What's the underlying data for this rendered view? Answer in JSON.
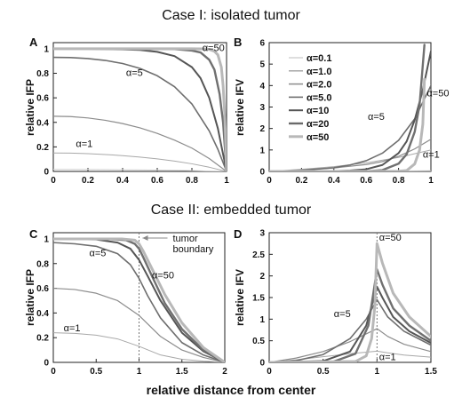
{
  "figure": {
    "case1_title": "Case I: isolated tumor",
    "case2_title": "Case II: embedded tumor",
    "shared_xlabel": "relative distance from center"
  },
  "legend": {
    "entries": [
      "α=0.1",
      "α=1.0",
      "α=2.0",
      "α=5.0",
      "α=10",
      "α=20",
      "α=50"
    ],
    "colors": [
      "#d2d2d2",
      "#a8a8a8",
      "#8c8c8c",
      "#6e6e6e",
      "#555555",
      "#6a6a6a",
      "#b8b8b8"
    ]
  },
  "chart_data": [
    {
      "panel": "A",
      "type": "line",
      "ylabel": "relative IFP",
      "xlim": [
        0,
        1
      ],
      "ylim": [
        0,
        1.05
      ],
      "xticks": [
        "0",
        "0.2",
        "0.4",
        "0.6",
        "0.8",
        "1"
      ],
      "yticks": [
        "0",
        "0.2",
        "0.4",
        "0.6",
        "0.8",
        "1"
      ],
      "annotations": [
        "α=50",
        "α=5",
        "α=1"
      ],
      "series": [
        {
          "name": "α=0.1",
          "x": [
            0,
            0.1,
            0.2,
            0.3,
            0.4,
            0.5,
            0.6,
            0.7,
            0.8,
            0.9,
            1
          ],
          "y": [
            0.017,
            0.017,
            0.016,
            0.015,
            0.014,
            0.013,
            0.011,
            0.009,
            0.006,
            0.003,
            0
          ]
        },
        {
          "name": "α=1.0",
          "x": [
            0,
            0.1,
            0.2,
            0.3,
            0.4,
            0.5,
            0.6,
            0.7,
            0.8,
            0.9,
            1
          ],
          "y": [
            0.15,
            0.149,
            0.145,
            0.138,
            0.129,
            0.117,
            0.102,
            0.084,
            0.062,
            0.034,
            0
          ]
        },
        {
          "name": "α=2.0",
          "x": [
            0,
            0.1,
            0.2,
            0.3,
            0.4,
            0.5,
            0.6,
            0.7,
            0.8,
            0.9,
            1
          ],
          "y": [
            0.45,
            0.447,
            0.436,
            0.417,
            0.39,
            0.355,
            0.31,
            0.255,
            0.19,
            0.105,
            0
          ]
        },
        {
          "name": "α=5.0",
          "x": [
            0,
            0.1,
            0.2,
            0.3,
            0.4,
            0.5,
            0.6,
            0.7,
            0.8,
            0.9,
            0.95,
            1
          ],
          "y": [
            0.93,
            0.928,
            0.92,
            0.905,
            0.88,
            0.84,
            0.78,
            0.69,
            0.55,
            0.33,
            0.18,
            0
          ]
        },
        {
          "name": "α=10",
          "x": [
            0,
            0.2,
            0.4,
            0.5,
            0.6,
            0.7,
            0.8,
            0.85,
            0.9,
            0.95,
            1
          ],
          "y": [
            1.0,
            0.999,
            0.995,
            0.99,
            0.975,
            0.94,
            0.85,
            0.76,
            0.6,
            0.35,
            0
          ]
        },
        {
          "name": "α=20",
          "x": [
            0,
            0.4,
            0.6,
            0.7,
            0.8,
            0.85,
            0.9,
            0.93,
            0.96,
            0.98,
            1
          ],
          "y": [
            1.0,
            1.0,
            0.999,
            0.997,
            0.985,
            0.97,
            0.91,
            0.83,
            0.63,
            0.4,
            0
          ]
        },
        {
          "name": "α=50",
          "x": [
            0,
            0.6,
            0.8,
            0.86,
            0.9,
            0.93,
            0.95,
            0.97,
            0.98,
            0.99,
            1
          ],
          "y": [
            1.0,
            1.0,
            1.0,
            0.999,
            0.995,
            0.98,
            0.95,
            0.85,
            0.7,
            0.45,
            0
          ]
        }
      ]
    },
    {
      "panel": "B",
      "type": "line",
      "ylabel": "relative IFV",
      "xlim": [
        0,
        1
      ],
      "ylim": [
        0,
        6
      ],
      "xticks": [
        "0",
        "0.2",
        "0.4",
        "0.6",
        "0.8",
        "1"
      ],
      "yticks": [
        "0",
        "1",
        "2",
        "3",
        "4",
        "5",
        "6"
      ],
      "annotations": [
        "α=50",
        "α=5",
        "α=1"
      ],
      "series": [
        {
          "name": "α=0.1",
          "x": [
            0,
            0.2,
            0.4,
            0.6,
            0.8,
            1
          ],
          "y": [
            0,
            0.005,
            0.011,
            0.017,
            0.023,
            0.03
          ]
        },
        {
          "name": "α=1.0",
          "x": [
            0,
            0.2,
            0.4,
            0.6,
            0.8,
            1
          ],
          "y": [
            0,
            0.1,
            0.22,
            0.4,
            0.65,
            1.0
          ]
        },
        {
          "name": "α=2.0",
          "x": [
            0,
            0.2,
            0.4,
            0.6,
            0.7,
            0.8,
            0.9,
            1
          ],
          "y": [
            0,
            0.07,
            0.16,
            0.32,
            0.46,
            0.7,
            1.05,
            1.5
          ]
        },
        {
          "name": "α=5.0",
          "x": [
            0,
            0.2,
            0.4,
            0.5,
            0.6,
            0.7,
            0.8,
            0.9,
            1
          ],
          "y": [
            0,
            0.05,
            0.17,
            0.3,
            0.5,
            0.85,
            1.45,
            2.45,
            4.0
          ]
        },
        {
          "name": "α=10",
          "x": [
            0,
            0.4,
            0.5,
            0.6,
            0.7,
            0.8,
            0.85,
            0.9,
            0.95,
            1
          ],
          "y": [
            0,
            0.01,
            0.04,
            0.1,
            0.3,
            0.85,
            1.4,
            2.4,
            3.8,
            5.6
          ]
        },
        {
          "name": "α=20",
          "x": [
            0,
            0.6,
            0.7,
            0.8,
            0.85,
            0.9,
            0.93,
            0.96
          ],
          "y": [
            0,
            0.01,
            0.06,
            0.36,
            0.8,
            1.85,
            3.1,
            5.9
          ]
        },
        {
          "name": "α=50",
          "x": [
            0,
            0.8,
            0.85,
            0.9,
            0.93,
            0.95,
            0.96
          ],
          "y": [
            0,
            0.01,
            0.04,
            0.35,
            1.0,
            2.2,
            4.3
          ]
        }
      ]
    },
    {
      "panel": "C",
      "type": "line",
      "ylabel": "relative IFP",
      "xlim": [
        0,
        2
      ],
      "ylim": [
        0,
        1.05
      ],
      "xticks": [
        "0",
        "0.5",
        "1",
        "1.5",
        "2"
      ],
      "yticks": [
        "0",
        "0.2",
        "0.4",
        "0.6",
        "0.8",
        "1"
      ],
      "annotations": [
        "tumor boundary",
        "α=5",
        "α=50",
        "α=1"
      ],
      "series": [
        {
          "name": "α=1.0",
          "x": [
            0,
            0.25,
            0.5,
            0.75,
            1,
            1.25,
            1.5,
            1.75,
            2
          ],
          "y": [
            0.24,
            0.235,
            0.22,
            0.19,
            0.13,
            0.06,
            0.025,
            0.01,
            0
          ]
        },
        {
          "name": "α=2.0",
          "x": [
            0,
            0.25,
            0.5,
            0.75,
            1,
            1.25,
            1.5,
            1.75,
            2
          ],
          "y": [
            0.6,
            0.59,
            0.56,
            0.5,
            0.38,
            0.21,
            0.1,
            0.04,
            0
          ]
        },
        {
          "name": "α=5.0",
          "x": [
            0,
            0.25,
            0.5,
            0.75,
            0.9,
            1,
            1.1,
            1.25,
            1.5,
            1.75,
            2
          ],
          "y": [
            0.97,
            0.96,
            0.94,
            0.88,
            0.79,
            0.68,
            0.54,
            0.36,
            0.16,
            0.06,
            0
          ]
        },
        {
          "name": "α=10",
          "x": [
            0,
            0.5,
            0.75,
            0.9,
            1,
            1.1,
            1.25,
            1.5,
            1.75,
            2
          ],
          "y": [
            1.0,
            0.995,
            0.97,
            0.92,
            0.83,
            0.7,
            0.5,
            0.24,
            0.09,
            0
          ]
        },
        {
          "name": "α=20",
          "x": [
            0,
            0.6,
            0.85,
            0.95,
            1,
            1.05,
            1.15,
            1.3,
            1.5,
            1.75,
            2
          ],
          "y": [
            1.0,
            1.0,
            0.99,
            0.96,
            0.92,
            0.85,
            0.7,
            0.48,
            0.27,
            0.1,
            0
          ]
        },
        {
          "name": "α=50",
          "x": [
            0,
            0.8,
            0.95,
            1,
            1.05,
            1.15,
            1.3,
            1.5,
            1.75,
            2
          ],
          "y": [
            1.0,
            1.0,
            0.99,
            0.96,
            0.9,
            0.76,
            0.55,
            0.32,
            0.12,
            0
          ]
        }
      ]
    },
    {
      "panel": "D",
      "type": "line",
      "ylabel": "relative IFV",
      "xlim": [
        0,
        1.5
      ],
      "ylim": [
        0,
        3
      ],
      "xticks": [
        "0",
        "0.5",
        "1",
        "1.5"
      ],
      "yticks": [
        "0",
        "0.5",
        "1",
        "1.5",
        "2",
        "2.5",
        "3"
      ],
      "annotations": [
        "α=50",
        "α=5",
        "α=1"
      ],
      "series": [
        {
          "name": "α=1.0",
          "x": [
            0,
            0.25,
            0.5,
            0.75,
            1,
            1.1,
            1.25,
            1.5
          ],
          "y": [
            0,
            0.06,
            0.13,
            0.2,
            0.26,
            0.22,
            0.17,
            0.12
          ]
        },
        {
          "name": "α=2.0",
          "x": [
            0,
            0.25,
            0.5,
            0.75,
            1,
            1.1,
            1.25,
            1.5
          ],
          "y": [
            0,
            0.1,
            0.25,
            0.48,
            0.78,
            0.6,
            0.42,
            0.25
          ]
        },
        {
          "name": "α=5.0",
          "x": [
            0,
            0.25,
            0.5,
            0.75,
            0.9,
            1,
            1.1,
            1.25,
            1.5
          ],
          "y": [
            0,
            0.04,
            0.18,
            0.55,
            1.0,
            1.45,
            1.05,
            0.72,
            0.4
          ]
        },
        {
          "name": "α=10",
          "x": [
            0,
            0.5,
            0.75,
            0.9,
            1,
            1.05,
            1.15,
            1.3,
            1.5
          ],
          "y": [
            0,
            0.03,
            0.25,
            0.85,
            1.75,
            1.5,
            1.05,
            0.72,
            0.45
          ]
        },
        {
          "name": "α=20",
          "x": [
            0,
            0.6,
            0.8,
            0.92,
            1,
            1.05,
            1.15,
            1.3,
            1.5
          ],
          "y": [
            0,
            0.02,
            0.2,
            0.85,
            2.15,
            1.8,
            1.25,
            0.85,
            0.5
          ]
        },
        {
          "name": "α=50",
          "x": [
            0,
            0.8,
            0.9,
            0.95,
            0.98,
            1,
            1.05,
            1.15,
            1.3,
            1.5
          ],
          "y": [
            0,
            0.02,
            0.15,
            0.55,
            1.3,
            2.75,
            2.3,
            1.6,
            1.05,
            0.6
          ]
        }
      ]
    }
  ]
}
